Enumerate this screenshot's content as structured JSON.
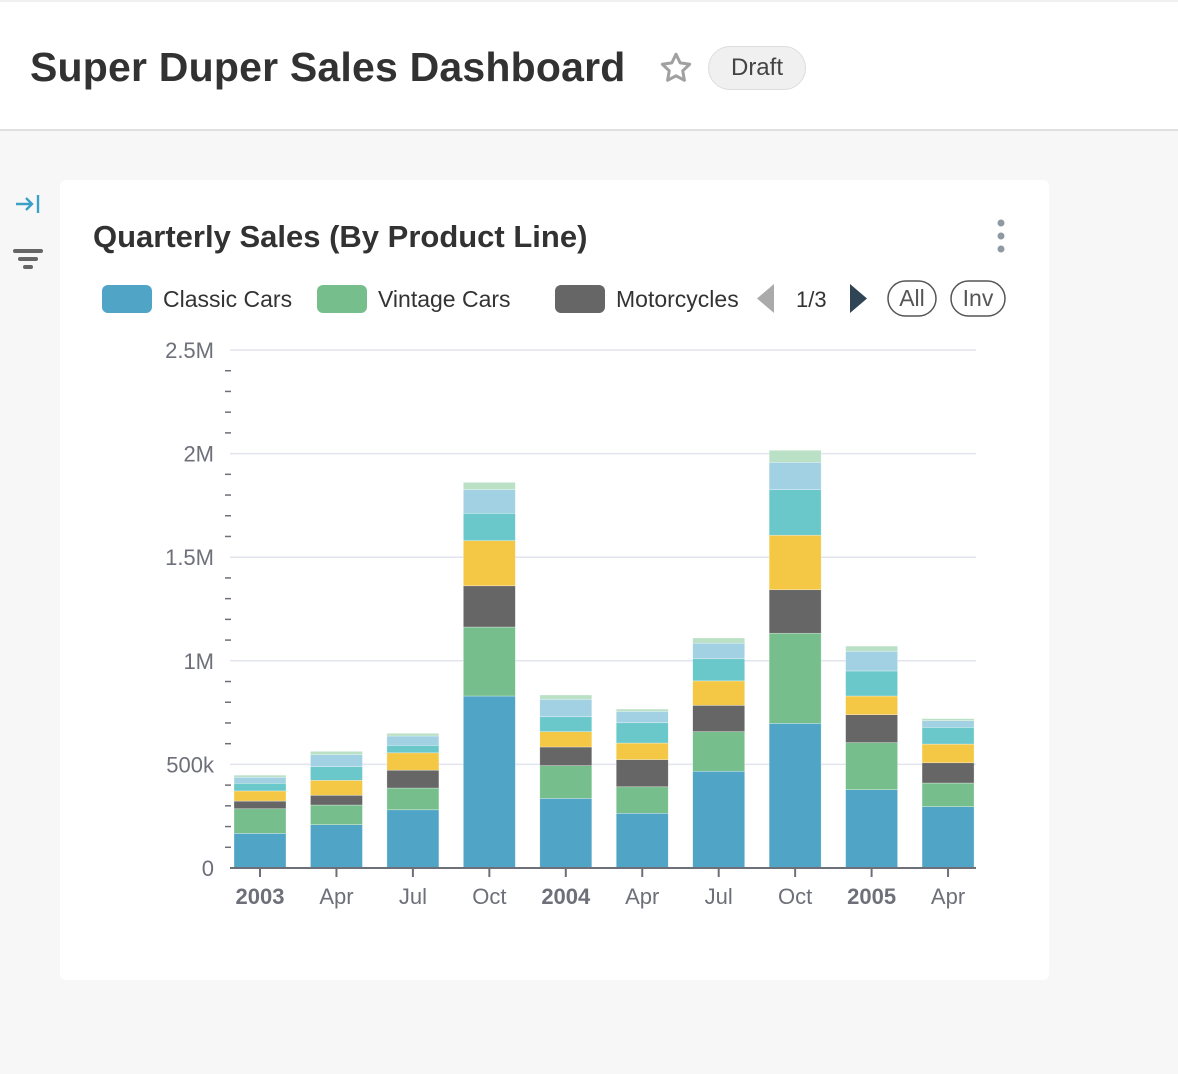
{
  "header": {
    "title": "Super Duper Sales Dashboard",
    "status_badge": "Draft",
    "favorite_icon": "star-outline-icon"
  },
  "sidebar": {
    "expand_icon": "arrow-to-right-icon",
    "filter_icon": "filter-icon"
  },
  "chart_card": {
    "title": "Quarterly Sales (By Product Line)",
    "menu_icon": "more-vertical-icon",
    "legend": {
      "page": "1/3",
      "prev_icon": "triangle-left-icon",
      "next_icon": "triangle-right-icon",
      "select_all": "All",
      "invert": "Inv"
    }
  },
  "chart_data": {
    "type": "bar",
    "stacked": true,
    "title": "Quarterly Sales (By Product Line)",
    "x": [
      "2003-01",
      "2003-04",
      "2003-07",
      "2003-10",
      "2004-01",
      "2004-04",
      "2004-07",
      "2004-10",
      "2005-01",
      "2005-04"
    ],
    "x_tick_labels": [
      "2003",
      "Apr",
      "Jul",
      "Oct",
      "2004",
      "Apr",
      "Jul",
      "Oct",
      "2005",
      "Apr"
    ],
    "x_tick_bold": [
      true,
      false,
      false,
      false,
      true,
      false,
      false,
      false,
      true,
      false
    ],
    "ylim": [
      0,
      2500000
    ],
    "y_ticks": [
      0,
      500000,
      1000000,
      1500000,
      2000000,
      2500000
    ],
    "y_tick_labels": [
      "0",
      "500k",
      "1M",
      "1.5M",
      "2M",
      "2.5M"
    ],
    "grid": true,
    "legend_position": "top",
    "series": [
      {
        "name": "Classic Cars",
        "color": "#50A5C6",
        "values": [
          167000,
          209000,
          281000,
          830000,
          336000,
          264000,
          467000,
          698000,
          378000,
          296000
        ]
      },
      {
        "name": "Vintage Cars",
        "color": "#76BF8C",
        "values": [
          119000,
          95000,
          105000,
          333000,
          158000,
          128000,
          191000,
          435000,
          227000,
          114000
        ]
      },
      {
        "name": "Motorcycles",
        "color": "#666666",
        "values": [
          37000,
          47000,
          86000,
          199000,
          90000,
          131000,
          127000,
          210000,
          135000,
          98000
        ]
      },
      {
        "color": "#F4C745",
        "values": [
          49000,
          72000,
          84000,
          218000,
          74000,
          80000,
          118000,
          263000,
          90000,
          90000
        ]
      },
      {
        "color": "#6BC8CA",
        "values": [
          37000,
          66000,
          36000,
          132000,
          72000,
          98000,
          107000,
          220000,
          121000,
          81000
        ]
      },
      {
        "color": "#A1D1E2",
        "values": [
          29000,
          58000,
          45000,
          114000,
          84000,
          55000,
          75000,
          132000,
          95000,
          32000
        ]
      },
      {
        "color": "#BAE0C6",
        "values": [
          10000,
          16000,
          13000,
          35000,
          21000,
          11000,
          25000,
          58000,
          25000,
          10000
        ]
      }
    ]
  }
}
